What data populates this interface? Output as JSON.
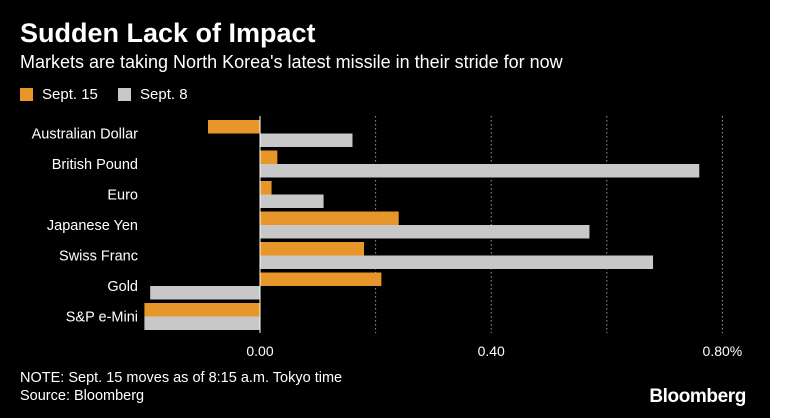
{
  "title": "Sudden Lack of Impact",
  "subtitle": "Markets are taking North Korea's latest missile in their stride for now",
  "note": "NOTE: Sept. 15 moves as of 8:15 a.m. Tokyo time",
  "source": "Source: Bloomberg",
  "brand": "Bloomberg",
  "chart_data": {
    "type": "bar",
    "orientation": "horizontal",
    "categories": [
      "Australian Dollar",
      "British Pound",
      "Euro",
      "Japanese Yen",
      "Swiss Franc",
      "Gold",
      "S&P e-Mini"
    ],
    "series": [
      {
        "name": "Sept. 15",
        "color": "#e7972a",
        "values": [
          -0.09,
          0.03,
          0.02,
          0.24,
          0.18,
          0.21,
          -0.2
        ]
      },
      {
        "name": "Sept. 8",
        "color": "#c8c8c8",
        "values": [
          0.16,
          0.76,
          0.11,
          0.57,
          0.68,
          -0.19,
          -0.2
        ]
      }
    ],
    "xlim": [
      -0.2,
      0.84
    ],
    "xticks": [
      0.0,
      0.4,
      0.8
    ],
    "xtick_labels": [
      "0.00",
      "0.40",
      "0.80%"
    ],
    "gridlines": [
      0.2,
      0.4,
      0.6,
      0.8
    ],
    "legend_position": "top-left"
  }
}
